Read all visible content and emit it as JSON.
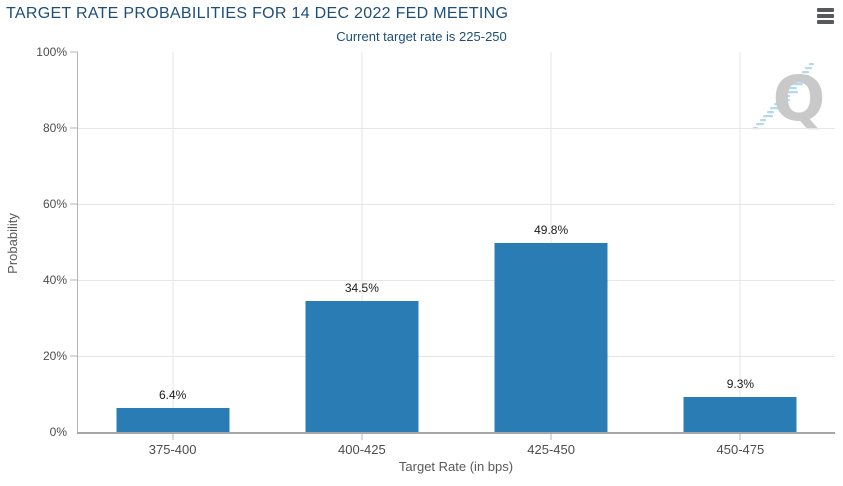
{
  "header": {
    "title": "TARGET RATE PROBABILITIES FOR 14 DEC 2022 FED MEETING",
    "subtitle": "Current target rate is 225-250"
  },
  "colors": {
    "bar": "#2a7cb4",
    "title": "#1d4e79",
    "grid": "#e6e6e6",
    "axis": "#b5b5b5",
    "axis_dark": "#a6a6a6",
    "tick_text": "#4d4d4d",
    "muted_text": "#595959",
    "value_label": "#1a1a1a",
    "menu": "#58595b",
    "watermark_gray": "#c9c9c9",
    "watermark_blue": "#b3d9f2"
  },
  "chart_data": {
    "type": "bar",
    "title": "TARGET RATE PROBABILITIES FOR 14 DEC 2022 FED MEETING",
    "subtitle": "Current target rate is 225-250",
    "categories": [
      "375-400",
      "400-425",
      "425-450",
      "450-475"
    ],
    "values": [
      6.4,
      34.5,
      49.8,
      9.3
    ],
    "value_labels": [
      "6.4%",
      "34.5%",
      "49.8%",
      "9.3%"
    ],
    "xlabel": "Target Rate (in bps)",
    "ylabel": "Probability",
    "ylim": [
      0,
      100
    ],
    "yticks": [
      0,
      20,
      40,
      60,
      80,
      100
    ],
    "ytick_labels": [
      "0%",
      "20%",
      "40%",
      "60%",
      "80%",
      "100%"
    ],
    "grid": true,
    "legend": false
  }
}
